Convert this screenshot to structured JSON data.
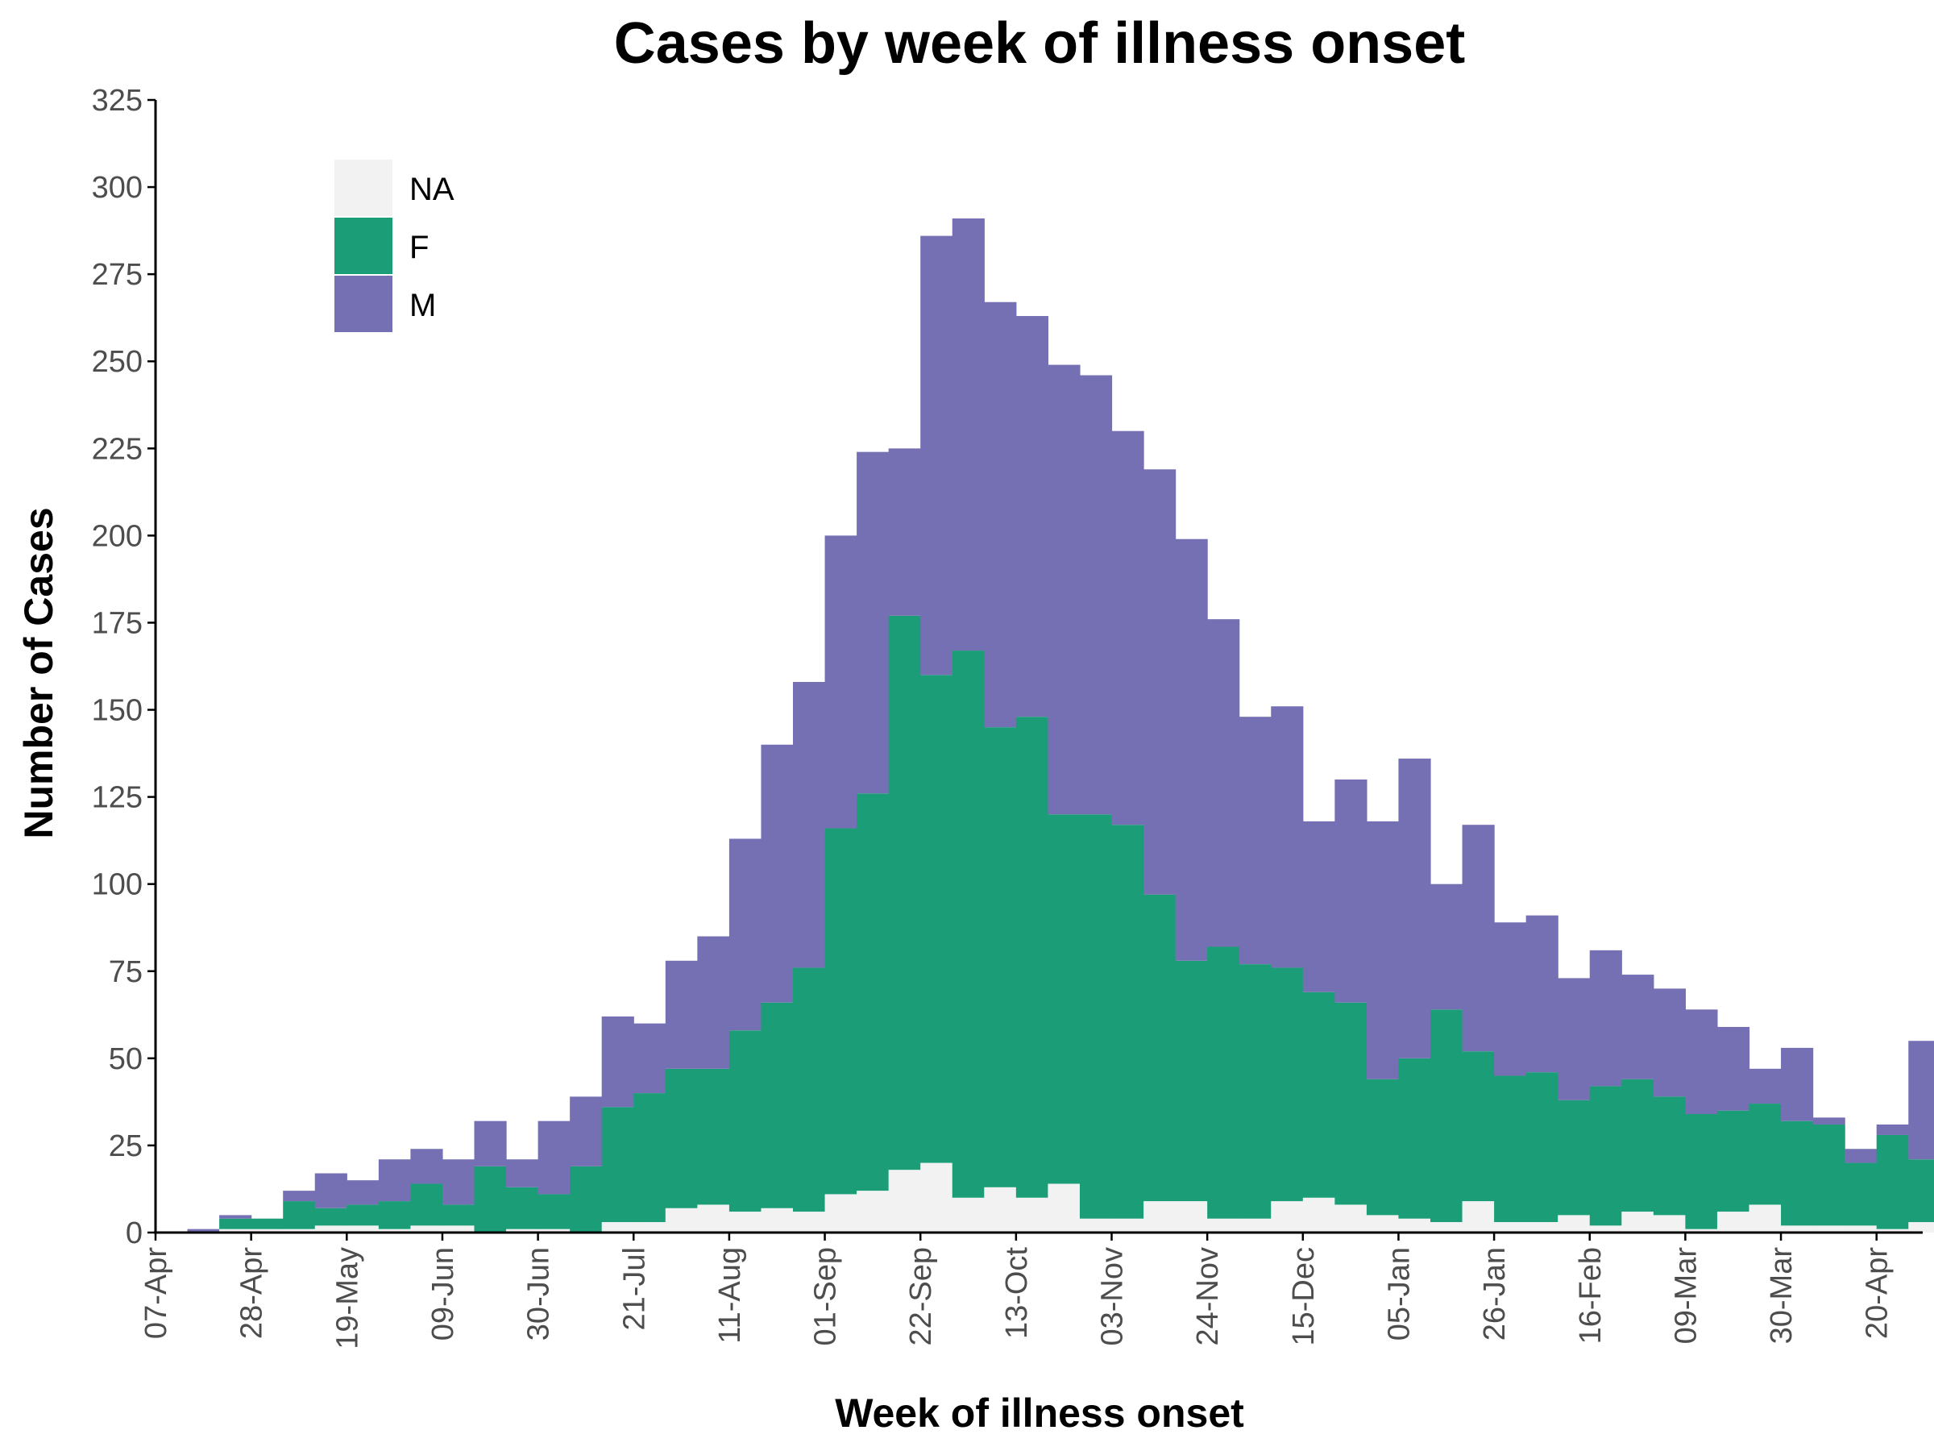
{
  "chart_data": {
    "type": "bar",
    "stacked": true,
    "title": "Cases by week of illness onset",
    "xlabel": "Week of illness onset",
    "ylabel": "Number of Cases",
    "ylim": [
      0,
      325
    ],
    "yticks": [
      0,
      25,
      50,
      75,
      100,
      125,
      150,
      175,
      200,
      225,
      250,
      275,
      300,
      325
    ],
    "xtick_labels": [
      "07-Apr",
      "28-Apr",
      "19-May",
      "09-Jun",
      "30-Jun",
      "21-Jul",
      "11-Aug",
      "01-Sep",
      "22-Sep",
      "13-Oct",
      "03-Nov",
      "24-Nov",
      "15-Dec",
      "05-Jan",
      "26-Jan",
      "16-Feb",
      "09-Mar",
      "30-Mar",
      "20-Apr"
    ],
    "categories": [
      "07-Apr",
      "14-Apr",
      "21-Apr",
      "28-Apr",
      "05-May",
      "12-May",
      "19-May",
      "26-May",
      "02-Jun",
      "09-Jun",
      "16-Jun",
      "23-Jun",
      "30-Jun",
      "07-Jul",
      "14-Jul",
      "21-Jul",
      "28-Jul",
      "04-Aug",
      "11-Aug",
      "18-Aug",
      "25-Aug",
      "01-Sep",
      "08-Sep",
      "15-Sep",
      "22-Sep",
      "29-Sep",
      "06-Oct",
      "13-Oct",
      "20-Oct",
      "27-Oct",
      "03-Nov",
      "10-Nov",
      "17-Nov",
      "24-Nov",
      "01-Dec",
      "08-Dec",
      "15-Dec",
      "22-Dec",
      "29-Dec",
      "05-Jan",
      "12-Jan",
      "19-Jan",
      "26-Jan",
      "02-Feb",
      "09-Feb",
      "16-Feb",
      "23-Feb",
      "02-Mar",
      "09-Mar",
      "16-Mar",
      "23-Mar",
      "30-Mar",
      "06-Apr",
      "13-Apr",
      "20-Apr",
      "27-Apr"
    ],
    "series": [
      {
        "name": "NA",
        "color": "#f2f2f2",
        "values": [
          0,
          0,
          1,
          1,
          1,
          2,
          2,
          1,
          2,
          2,
          0,
          1,
          1,
          0,
          3,
          3,
          7,
          8,
          6,
          7,
          6,
          11,
          12,
          18,
          20,
          10,
          13,
          10,
          14,
          4,
          4,
          9,
          9,
          4,
          4,
          9,
          10,
          8,
          5,
          4,
          3,
          9,
          3,
          3,
          5,
          2,
          6,
          5,
          1,
          6,
          8,
          2,
          2,
          2,
          1,
          3
        ]
      },
      {
        "name": "F",
        "color": "#1b9e77",
        "values": [
          0,
          0,
          3,
          3,
          8,
          5,
          6,
          8,
          12,
          6,
          19,
          12,
          10,
          19,
          33,
          37,
          40,
          39,
          52,
          59,
          70,
          105,
          114,
          159,
          140,
          157,
          132,
          138,
          106,
          116,
          113,
          88,
          69,
          78,
          73,
          67,
          59,
          58,
          39,
          46,
          61,
          43,
          42,
          43,
          33,
          40,
          38,
          34,
          33,
          29,
          29,
          30,
          29,
          18,
          27,
          18
        ]
      },
      {
        "name": "M",
        "color": "#7570b3",
        "values": [
          0,
          1,
          1,
          0,
          3,
          10,
          7,
          12,
          10,
          13,
          13,
          8,
          21,
          20,
          26,
          20,
          31,
          38,
          55,
          74,
          82,
          84,
          98,
          48,
          126,
          124,
          122,
          115,
          129,
          126,
          113,
          122,
          121,
          94,
          71,
          75,
          49,
          64,
          74,
          86,
          36,
          65,
          44,
          45,
          35,
          39,
          30,
          31,
          30,
          24,
          10,
          21,
          2,
          4,
          3,
          34
        ]
      }
    ],
    "legend": {
      "position": "top-left",
      "order": [
        "NA",
        "F",
        "M"
      ]
    },
    "grid": false
  }
}
